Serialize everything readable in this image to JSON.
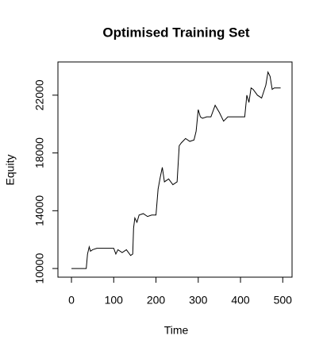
{
  "chart_data": {
    "type": "line",
    "title": "Optimised Training Set",
    "x_label": "Time",
    "y_label": "Equity",
    "x": [
      0,
      35,
      38,
      42,
      45,
      50,
      60,
      80,
      100,
      105,
      110,
      120,
      130,
      140,
      145,
      147,
      150,
      155,
      160,
      170,
      180,
      190,
      200,
      205,
      210,
      215,
      220,
      230,
      240,
      250,
      255,
      260,
      270,
      280,
      290,
      295,
      300,
      305,
      310,
      320,
      330,
      340,
      350,
      360,
      370,
      380,
      390,
      400,
      410,
      415,
      420,
      425,
      430,
      440,
      450,
      460,
      465,
      470,
      475,
      480,
      490,
      495
    ],
    "series": [
      {
        "name": "Equity",
        "color": "#000000",
        "values": [
          10000,
          10000,
          11000,
          11500,
          11200,
          11300,
          11400,
          11400,
          11400,
          11000,
          11300,
          11100,
          11300,
          10900,
          11000,
          12800,
          13500,
          13200,
          13700,
          13800,
          13600,
          13700,
          13700,
          15500,
          16300,
          17000,
          16000,
          16200,
          15800,
          16000,
          18500,
          18700,
          19000,
          18800,
          18900,
          19500,
          21000,
          20500,
          20400,
          20500,
          20500,
          21300,
          20800,
          20200,
          20500,
          20500,
          20500,
          20500,
          20500,
          22000,
          21500,
          22500,
          22400,
          22000,
          21800,
          22700,
          23600,
          23300,
          22400,
          22500,
          22500,
          22500
        ]
      }
    ],
    "xlim": [
      -32,
      522
    ],
    "ylim": [
      9400,
      24300
    ],
    "xticks": [
      0,
      100,
      200,
      300,
      400,
      500
    ],
    "yticks": [
      10000,
      14000,
      18000,
      22000
    ]
  }
}
